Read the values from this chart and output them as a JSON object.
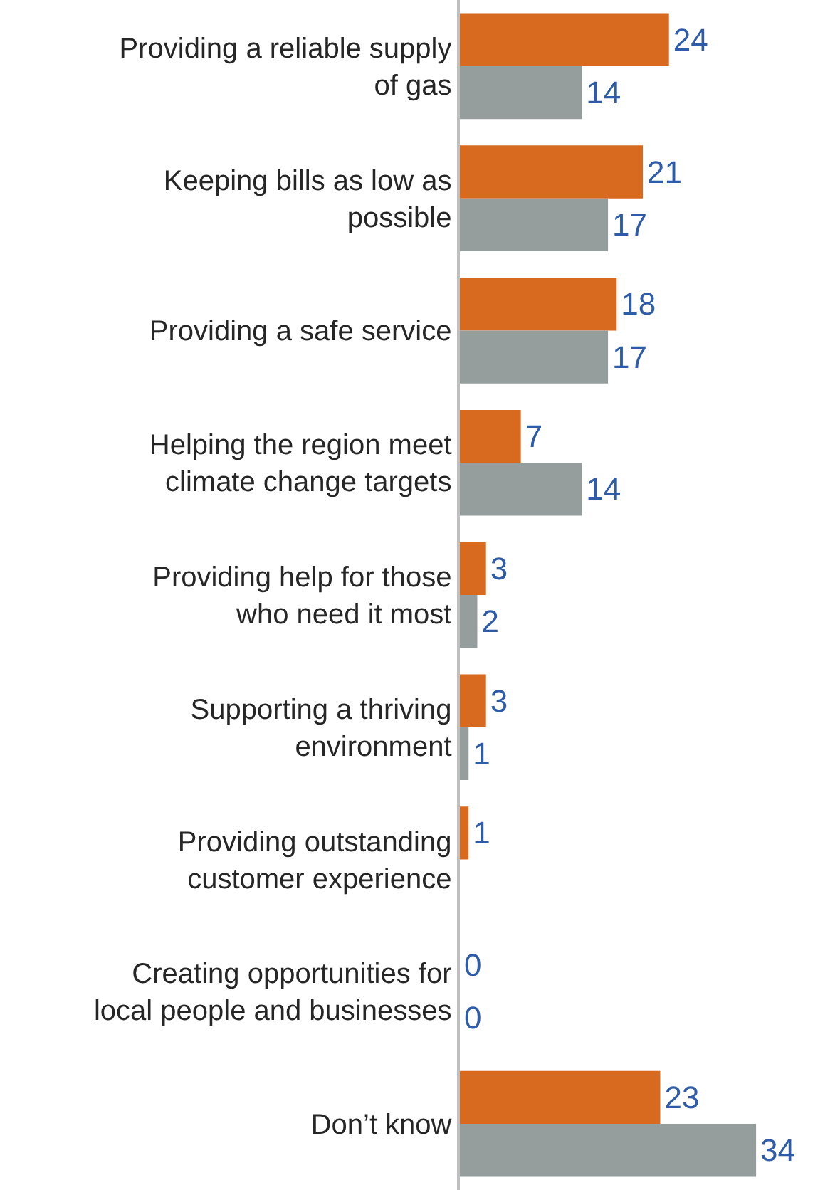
{
  "chart_data": {
    "type": "bar",
    "orientation": "horizontal",
    "categories": [
      "Providing a reliable supply of gas",
      "Keeping bills as low as possible",
      "Providing a safe service",
      "Helping the region meet climate change targets",
      "Providing help for those who need it most",
      "Supporting a thriving environment",
      "Providing outstanding customer experience",
      "Creating opportunities for local people and businesses",
      "Don’t know"
    ],
    "series": [
      {
        "color": "#d86a1f",
        "values": [
          24,
          21,
          18,
          7,
          3,
          3,
          1,
          0,
          23
        ]
      },
      {
        "color": "#969d9d",
        "values": [
          14,
          17,
          17,
          14,
          2,
          1,
          null,
          0,
          34
        ]
      }
    ],
    "tick_labels": "y",
    "data_labels": true,
    "grid": false
  }
}
